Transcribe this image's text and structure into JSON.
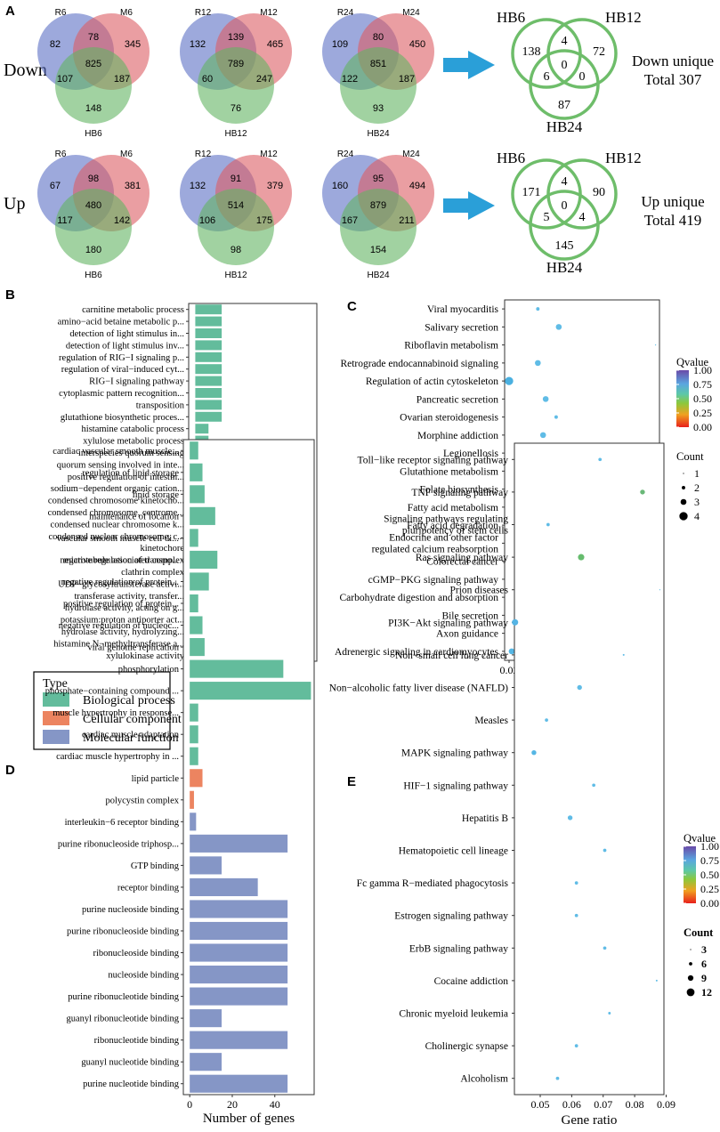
{
  "colors": {
    "venn_blue": "#5b6fc4",
    "venn_red": "#dc5e64",
    "venn_green": "#63b463",
    "outline_green": "#6ebd6a",
    "arrow_blue": "#2a9fd8",
    "bp": "#63bc9c",
    "cc": "#ec8460",
    "mf": "#8596c6",
    "dot_default": "#60bce6"
  },
  "panel_a": {
    "label": "A",
    "row_down": "Down",
    "row_up": "Up",
    "venns": [
      {
        "id": "v-down-6",
        "labels": [
          "R6",
          "M6",
          "HB6"
        ],
        "values": {
          "a": "82",
          "ab": "78",
          "b": "345",
          "abc": "825",
          "ac": "107",
          "bc": "187",
          "c": "148"
        }
      },
      {
        "id": "v-down-12",
        "labels": [
          "R12",
          "M12",
          "HB12"
        ],
        "values": {
          "a": "132",
          "ab": "139",
          "b": "465",
          "abc": "789",
          "ac": "60",
          "bc": "247",
          "c": "76"
        }
      },
      {
        "id": "v-down-24",
        "labels": [
          "R24",
          "M24",
          "HB24"
        ],
        "values": {
          "a": "109",
          "ab": "80",
          "b": "450",
          "abc": "851",
          "ac": "122",
          "bc": "187",
          "c": "93"
        }
      },
      {
        "id": "v-up-6",
        "labels": [
          "R6",
          "M6",
          "HB6"
        ],
        "values": {
          "a": "67",
          "ab": "98",
          "b": "381",
          "abc": "480",
          "ac": "117",
          "bc": "142",
          "c": "180"
        }
      },
      {
        "id": "v-up-12",
        "labels": [
          "R12",
          "M12",
          "HB12"
        ],
        "values": {
          "a": "132",
          "ab": "91",
          "b": "379",
          "abc": "514",
          "ac": "106",
          "bc": "175",
          "c": "98"
        }
      },
      {
        "id": "v-up-24",
        "labels": [
          "R24",
          "M24",
          "HB24"
        ],
        "values": {
          "a": "160",
          "ab": "95",
          "b": "494",
          "abc": "879",
          "ac": "167",
          "bc": "211",
          "c": "154"
        }
      }
    ],
    "unique": [
      {
        "id": "u-down",
        "labels": [
          "HB6",
          "HB12",
          "HB24"
        ],
        "values": {
          "a": "138",
          "ab": "4",
          "b": "72",
          "abc": "0",
          "ac": "6",
          "bc": "0",
          "c": "87"
        },
        "caption1": "Down unique",
        "caption2": "Total  307"
      },
      {
        "id": "u-up",
        "labels": [
          "HB6",
          "HB12",
          "HB24"
        ],
        "values": {
          "a": "171",
          "ab": "4",
          "b": "90",
          "abc": "0",
          "ac": "5",
          "bc": "4",
          "c": "145"
        },
        "caption1": "Up unique",
        "caption2": "Total  419"
      }
    ]
  },
  "legend": {
    "title": "Type",
    "items": [
      "Biological process",
      "Cellular component",
      "Molecular function"
    ]
  },
  "chart_data": [
    {
      "id": "B",
      "type": "bar",
      "orientation": "horizontal",
      "label": "B",
      "xlabel": "Number of genes",
      "xlim": [
        -0.5,
        9.2
      ],
      "xticks": [
        0,
        2.5,
        5,
        7.5
      ],
      "xtick_labels": [
        "0.0",
        "2.5",
        "5.0",
        "7.5"
      ],
      "categories": [
        "carnitine metabolic process",
        "amino−acid betaine metabolic p...",
        "detection of light stimulus in...",
        "detection of light stimulus inv...",
        "regulation of RIG−I signaling p...",
        "regulation of viral−induced cyt...",
        "RIG−I signaling pathway",
        "cytoplasmic pattern recognition...",
        "transposition",
        "glutathione biosynthetic proces...",
        "histamine catabolic process",
        "xylulose metabolic process",
        "interspecies quorum sensing",
        "quorum sensing involved in inte...",
        "positive regulation of intestin...",
        "sodium−dependent organic cation...",
        "condensed chromosome kinetocho...",
        "condensed chromosome, centrome...",
        "condensed nuclear chromosome k...",
        "condensed nuclear chromosome, c...",
        "kinetochore",
        "microtubule associated complex",
        "clathrin complex",
        "UDP−glycosyltransferase activi...",
        "transferase activity, transfer...",
        "hydrolase activity, acting on g...",
        "potassium:proton antiporter act...",
        "hydrolase activity, hydrolyzing...",
        "histamine N−methyltransferase a...",
        "xylulokinase activity"
      ],
      "values": [
        2,
        2,
        2,
        2,
        2,
        2,
        2,
        2,
        2,
        2,
        1,
        1,
        1,
        1,
        1,
        1,
        4,
        4,
        3,
        3,
        5,
        5,
        1,
        7,
        9,
        7,
        1,
        6,
        1,
        1
      ],
      "types": [
        "bp",
        "bp",
        "bp",
        "bp",
        "bp",
        "bp",
        "bp",
        "bp",
        "bp",
        "bp",
        "bp",
        "bp",
        "bp",
        "bp",
        "bp",
        "bp",
        "cc",
        "cc",
        "cc",
        "cc",
        "cc",
        "cc",
        "cc",
        "mf",
        "mf",
        "mf",
        "mf",
        "mf",
        "mf",
        "mf"
      ]
    },
    {
      "id": "C",
      "type": "scatter",
      "label": "C",
      "xlabel": "Gene ratio",
      "xlim": [
        0.0183,
        0.0775
      ],
      "xticks": [
        0.02,
        0.04,
        0.06
      ],
      "xtick_labels": [
        "0.02",
        "0.04",
        "0.06"
      ],
      "categories": [
        "Viral myocarditis",
        "Salivary secretion",
        "Riboflavin metabolism",
        "Retrograde endocannabinoid signaling",
        "Regulation of actin cytoskeleton",
        "Pancreatic secretion",
        "Ovarian steroidogenesis",
        "Morphine addiction",
        "Legionellosis",
        "Glutathione metabolism",
        "Folate biosynthesis",
        "Fatty acid metabolism",
        "Fatty acid degradation",
        "Endocrine and other factor regulated calcium reabsorption",
        "Colorectal cancer",
        "cGMP−PKG signaling pathway",
        "Carbohydrate digestion and absorption",
        "Bile secretion",
        "Axon guidance",
        "Adrenergic signaling in cardiomyocytes"
      ],
      "x": [
        0.031,
        0.039,
        0.076,
        0.031,
        0.02,
        0.034,
        0.038,
        0.033,
        0.031,
        0.039,
        0.076,
        0.044,
        0.048,
        0.047,
        0.029,
        0.024,
        0.047,
        0.043,
        0.033,
        0.021
      ],
      "count": [
        2,
        3,
        1,
        3,
        4,
        3,
        2,
        3,
        2,
        2,
        1,
        2,
        2,
        2,
        2,
        3,
        2,
        3,
        3,
        3
      ],
      "colors": [
        "#60bce6",
        "#60bce6",
        "#60bce6",
        "#60bce6",
        "#4ab0e0",
        "#60bce6",
        "#60bce6",
        "#60bce6",
        "#60bce6",
        "#60bce6",
        "#60bce6",
        "#60bce6",
        "#60bce6",
        "#60bce6",
        "#60bce6",
        "#55b6e4",
        "#60bce6",
        "#60bce6",
        "#55b6e4",
        "#55b6e4"
      ],
      "colorbar": {
        "title": "Qvalue",
        "ticks": [
          "1.00",
          "0.75",
          "0.50",
          "0.25",
          "0.00"
        ]
      },
      "size_legend": {
        "title": "Count",
        "items": [
          {
            "v": 1,
            "label": "1"
          },
          {
            "v": 2,
            "label": "2"
          },
          {
            "v": 3,
            "label": "3"
          },
          {
            "v": 4,
            "label": "4"
          }
        ]
      }
    },
    {
      "id": "D",
      "type": "bar",
      "orientation": "horizontal",
      "label": "D",
      "xlabel": "Number of genes",
      "xlim": [
        -3,
        58.5
      ],
      "xticks": [
        0,
        20,
        40
      ],
      "xtick_labels": [
        "0",
        "20",
        "40"
      ],
      "categories": [
        "cardiac vascular smooth muscle...",
        "regulation of lipid storage",
        "lipid storage",
        "maintenance of location",
        "vascular smooth muscle cell di...",
        "negative regulation of transpo...",
        "negative regulation of protein...",
        "positive regulation of protein...",
        "negative regulation of nucleoc...",
        "viral genome replication",
        "phosphorylation",
        "phosphate−containing compound ...",
        "muscle hypertrophy in response...",
        "cardiac muscle adaptation",
        "cardiac muscle hypertrophy in ...",
        "lipid particle",
        "polycystin complex",
        "interleukin−6 receptor binding",
        "purine ribonucleoside triphosp...",
        "GTP binding",
        "receptor binding",
        "purine nucleoside binding",
        "purine ribonucleoside binding",
        "ribonucleoside binding",
        "nucleoside binding",
        "purine ribonucleotide binding",
        "guanyl ribonucleotide binding",
        "ribonucleotide binding",
        "guanyl nucleotide binding",
        "purine nucleotide binding"
      ],
      "values": [
        4,
        6,
        7,
        12,
        4,
        13,
        9,
        4,
        6,
        7,
        44,
        57,
        4,
        4,
        4,
        6,
        2,
        3,
        46,
        15,
        32,
        46,
        46,
        46,
        46,
        46,
        15,
        46,
        15,
        46
      ],
      "types": [
        "bp",
        "bp",
        "bp",
        "bp",
        "bp",
        "bp",
        "bp",
        "bp",
        "bp",
        "bp",
        "bp",
        "bp",
        "bp",
        "bp",
        "bp",
        "cc",
        "cc",
        "mf",
        "mf",
        "mf",
        "mf",
        "mf",
        "mf",
        "mf",
        "mf",
        "mf",
        "mf",
        "mf",
        "mf",
        "mf"
      ]
    },
    {
      "id": "E",
      "type": "scatter",
      "label": "E",
      "xlabel": "Gene ratio",
      "xlim": [
        0.0418,
        0.0893
      ],
      "xticks": [
        0.05,
        0.06,
        0.07,
        0.08,
        0.09
      ],
      "xtick_labels": [
        "0.05",
        "0.06",
        "0.07",
        "0.08",
        "0.09"
      ],
      "categories": [
        "Toll−like receptor signaling pathway",
        "TNF signaling pathway",
        "Signaling pathways regulating pluripotency of stem cells",
        "Ras signaling pathway",
        "Prion diseases",
        "PI3K−Akt signaling pathway",
        "Non−small cell lung cancer",
        "Non−alcoholic fatty liver disease (NAFLD)",
        "Measles",
        "MAPK signaling pathway",
        "HIF−1 signaling pathway",
        "Hepatitis B",
        "Hematopoietic cell lineage",
        "Fc gamma R−mediated phagocytosis",
        "Estrogen signaling pathway",
        "ErbB signaling pathway",
        "Cocaine addiction",
        "Chronic myeloid leukemia",
        "Cholinergic synapse",
        "Alcoholism"
      ],
      "x": [
        0.069,
        0.0825,
        0.0525,
        0.063,
        0.088,
        0.042,
        0.0765,
        0.0625,
        0.052,
        0.048,
        0.067,
        0.0595,
        0.0705,
        0.0615,
        0.0615,
        0.0705,
        0.087,
        0.072,
        0.0615,
        0.0555
      ],
      "count": [
        6,
        8,
        6,
        10,
        3,
        10,
        4,
        8,
        6,
        8,
        6,
        8,
        6,
        6,
        6,
        6,
        4,
        5,
        6,
        6
      ],
      "colors": [
        "#60bce6",
        "#6ab878",
        "#60bce6",
        "#66bc6e",
        "#60bce6",
        "#55b4e4",
        "#60bce6",
        "#60bce6",
        "#60bce6",
        "#55b6e4",
        "#60bce6",
        "#60bce6",
        "#60bce6",
        "#60bce6",
        "#60bce6",
        "#60bce6",
        "#60bce6",
        "#60bce6",
        "#60bce6",
        "#60bce6"
      ],
      "colorbar": {
        "title": "Qvalue",
        "ticks": [
          "1.00",
          "0.75",
          "0.50",
          "0.25",
          "0.00"
        ]
      },
      "size_legend": {
        "title": "Count",
        "items": [
          {
            "v": 3,
            "label": "3"
          },
          {
            "v": 6,
            "label": "6"
          },
          {
            "v": 9,
            "label": "9"
          },
          {
            "v": 12,
            "label": "12"
          }
        ]
      }
    }
  ]
}
